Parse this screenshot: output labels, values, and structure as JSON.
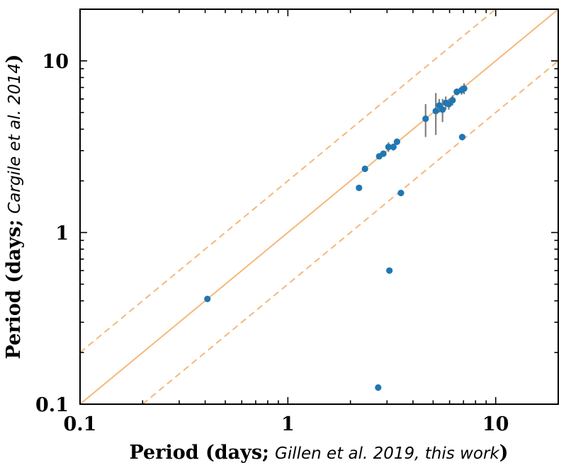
{
  "chart_data": {
    "type": "scatter",
    "xscale": "log",
    "yscale": "log",
    "xlim": [
      0.1,
      20
    ],
    "ylim": [
      0.1,
      20
    ],
    "xlabel": {
      "prefix": "Period (days;",
      "italic": "Gillen et al. 2019, this work",
      "suffix": ")"
    },
    "ylabel": {
      "prefix": "Period (days;",
      "italic": "Cargile et al. 2014",
      "suffix": ")"
    },
    "x_tick_labels": [
      {
        "value": 0.1,
        "label": "0.1"
      },
      {
        "value": 1,
        "label": "1"
      },
      {
        "value": 10,
        "label": "10"
      }
    ],
    "y_tick_labels": [
      {
        "value": 0.1,
        "label": "0.1"
      },
      {
        "value": 1,
        "label": "1"
      },
      {
        "value": 10,
        "label": "10"
      }
    ],
    "reference_lines": [
      {
        "name": "one-to-one",
        "ratio": 1,
        "style": "solid"
      },
      {
        "name": "double",
        "ratio": 2,
        "style": "dashed"
      },
      {
        "name": "half",
        "ratio": 0.5,
        "style": "dashed"
      }
    ],
    "points": [
      {
        "x": 0.41,
        "y": 0.41,
        "yerr": 0
      },
      {
        "x": 2.2,
        "y": 1.82,
        "yerr": 0
      },
      {
        "x": 2.35,
        "y": 2.35,
        "yerr": 0
      },
      {
        "x": 2.75,
        "y": 2.78,
        "yerr": 0.08
      },
      {
        "x": 2.88,
        "y": 2.88,
        "yerr": 0.08
      },
      {
        "x": 3.05,
        "y": 3.15,
        "yerr": 0.2
      },
      {
        "x": 3.22,
        "y": 3.15,
        "yerr": 0.15
      },
      {
        "x": 3.35,
        "y": 3.38,
        "yerr": 0.15
      },
      {
        "x": 3.5,
        "y": 1.7,
        "yerr": 0
      },
      {
        "x": 3.08,
        "y": 0.6,
        "yerr": 0
      },
      {
        "x": 2.72,
        "y": 0.125,
        "yerr": 0
      },
      {
        "x": 4.6,
        "y": 4.6,
        "yerr": 1.0
      },
      {
        "x": 5.15,
        "y": 5.1,
        "yerr": 1.4
      },
      {
        "x": 5.35,
        "y": 5.5,
        "yerr": 0.5
      },
      {
        "x": 5.55,
        "y": 5.2,
        "yerr": 0.8
      },
      {
        "x": 5.75,
        "y": 5.7,
        "yerr": 0.5
      },
      {
        "x": 5.95,
        "y": 5.6,
        "yerr": 0.4
      },
      {
        "x": 6.2,
        "y": 5.9,
        "yerr": 0.4
      },
      {
        "x": 6.5,
        "y": 6.6,
        "yerr": 0.3
      },
      {
        "x": 6.85,
        "y": 6.75,
        "yerr": 0.4
      },
      {
        "x": 7.05,
        "y": 6.9,
        "yerr": 0.5
      },
      {
        "x": 6.9,
        "y": 3.6,
        "yerr": 0
      }
    ],
    "colors": {
      "points": "#1f77b4",
      "errorbars": "#808080",
      "lines": "#f5b87a",
      "frame": "#000000"
    }
  }
}
